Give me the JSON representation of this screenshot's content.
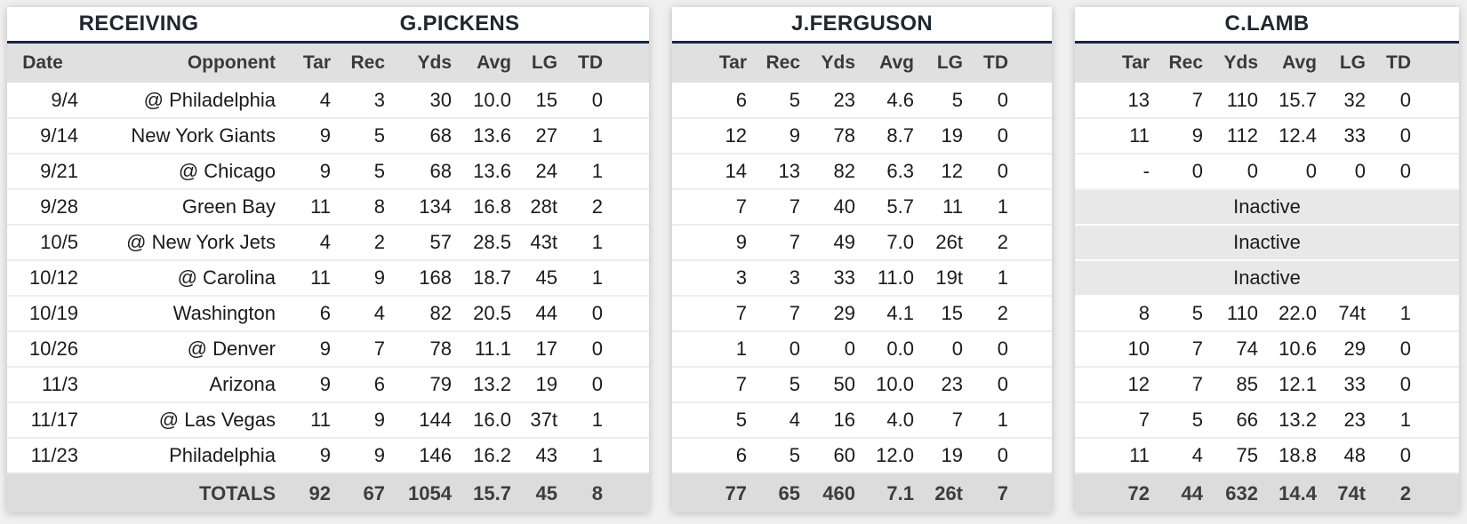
{
  "colors": {
    "page_bg": "#f0f0f0",
    "card_bg": "#ffffff",
    "accent_line": "#10284a",
    "header_bg": "#e0e0e0",
    "totals_bg": "#dcdcdc",
    "inactive_bg": "#e8e8e8"
  },
  "inactive_label": "Inactive",
  "tables": [
    {
      "section_title": "RECEIVING",
      "player": "G.PICKENS",
      "headers": [
        "Date",
        "Opponent",
        "Tar",
        "Rec",
        "Yds",
        "Avg",
        "LG",
        "TD"
      ],
      "rows": [
        [
          "9/4",
          "@ Philadelphia",
          "4",
          "3",
          "30",
          "10.0",
          "15",
          "0"
        ],
        [
          "9/14",
          "New York Giants",
          "9",
          "5",
          "68",
          "13.6",
          "27",
          "1"
        ],
        [
          "9/21",
          "@ Chicago",
          "9",
          "5",
          "68",
          "13.6",
          "24",
          "1"
        ],
        [
          "9/28",
          "Green Bay",
          "11",
          "8",
          "134",
          "16.8",
          "28t",
          "2"
        ],
        [
          "10/5",
          "@ New York Jets",
          "4",
          "2",
          "57",
          "28.5",
          "43t",
          "1"
        ],
        [
          "10/12",
          "@ Carolina",
          "11",
          "9",
          "168",
          "18.7",
          "45",
          "1"
        ],
        [
          "10/19",
          "Washington",
          "6",
          "4",
          "82",
          "20.5",
          "44",
          "0"
        ],
        [
          "10/26",
          "@ Denver",
          "9",
          "7",
          "78",
          "11.1",
          "17",
          "0"
        ],
        [
          "11/3",
          "Arizona",
          "9",
          "6",
          "79",
          "13.2",
          "19",
          "0"
        ],
        [
          "11/17",
          "@ Las Vegas",
          "11",
          "9",
          "144",
          "16.0",
          "37t",
          "1"
        ],
        [
          "11/23",
          "Philadelphia",
          "9",
          "9",
          "146",
          "16.2",
          "43",
          "1"
        ]
      ],
      "totals": [
        "",
        "TOTALS",
        "92",
        "67",
        "1054",
        "15.7",
        "45",
        "8"
      ]
    },
    {
      "section_title": "",
      "player": "J.FERGUSON",
      "headers": [
        "Tar",
        "Rec",
        "Yds",
        "Avg",
        "LG",
        "TD"
      ],
      "rows": [
        [
          "6",
          "5",
          "23",
          "4.6",
          "5",
          "0"
        ],
        [
          "12",
          "9",
          "78",
          "8.7",
          "19",
          "0"
        ],
        [
          "14",
          "13",
          "82",
          "6.3",
          "12",
          "0"
        ],
        [
          "7",
          "7",
          "40",
          "5.7",
          "11",
          "1"
        ],
        [
          "9",
          "7",
          "49",
          "7.0",
          "26t",
          "2"
        ],
        [
          "3",
          "3",
          "33",
          "11.0",
          "19t",
          "1"
        ],
        [
          "7",
          "7",
          "29",
          "4.1",
          "15",
          "2"
        ],
        [
          "1",
          "0",
          "0",
          "0.0",
          "0",
          "0"
        ],
        [
          "7",
          "5",
          "50",
          "10.0",
          "23",
          "0"
        ],
        [
          "5",
          "4",
          "16",
          "4.0",
          "7",
          "1"
        ],
        [
          "6",
          "5",
          "60",
          "12.0",
          "19",
          "0"
        ]
      ],
      "totals": [
        "77",
        "65",
        "460",
        "7.1",
        "26t",
        "7"
      ]
    },
    {
      "section_title": "",
      "player": "C.LAMB",
      "headers": [
        "Tar",
        "Rec",
        "Yds",
        "Avg",
        "LG",
        "TD"
      ],
      "rows": [
        [
          "13",
          "7",
          "110",
          "15.7",
          "32",
          "0"
        ],
        [
          "11",
          "9",
          "112",
          "12.4",
          "33",
          "0"
        ],
        [
          "-",
          "0",
          "0",
          "0",
          "0",
          "0"
        ],
        {
          "inactive": true
        },
        {
          "inactive": true
        },
        {
          "inactive": true
        },
        [
          "8",
          "5",
          "110",
          "22.0",
          "74t",
          "1"
        ],
        [
          "10",
          "7",
          "74",
          "10.6",
          "29",
          "0"
        ],
        [
          "12",
          "7",
          "85",
          "12.1",
          "33",
          "0"
        ],
        [
          "7",
          "5",
          "66",
          "13.2",
          "23",
          "1"
        ],
        [
          "11",
          "4",
          "75",
          "18.8",
          "48",
          "0"
        ]
      ],
      "totals": [
        "72",
        "44",
        "632",
        "14.4",
        "74t",
        "2"
      ]
    }
  ]
}
